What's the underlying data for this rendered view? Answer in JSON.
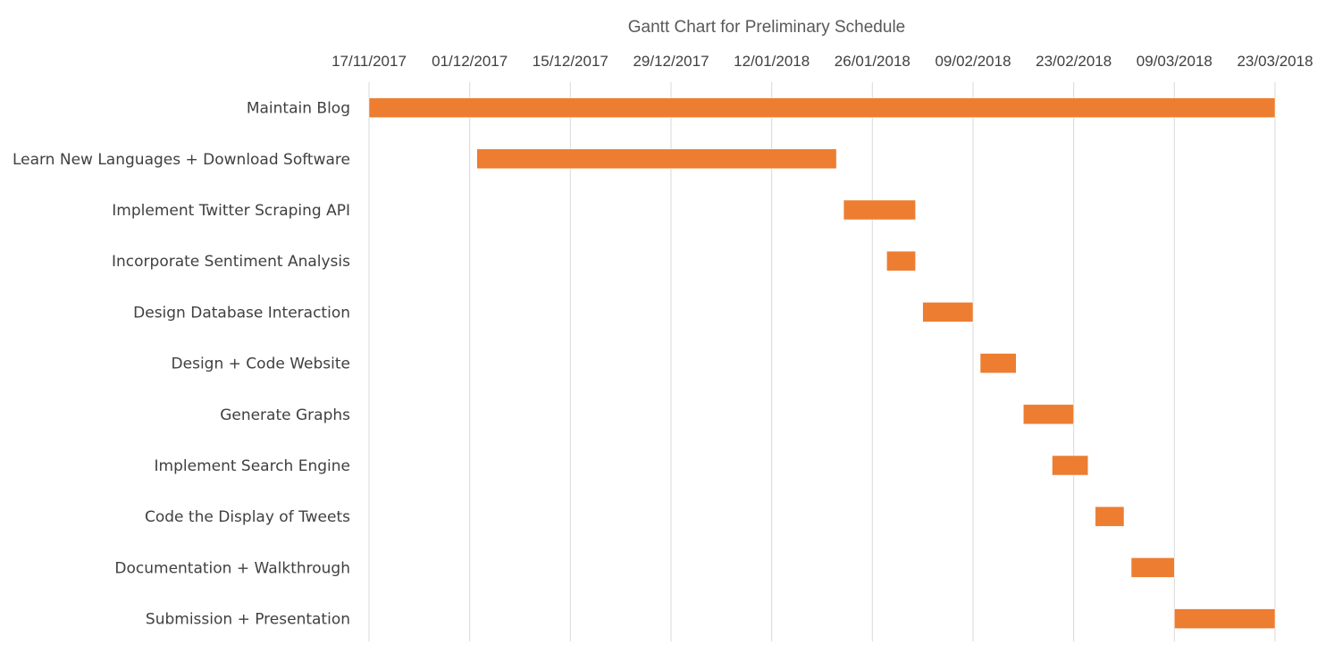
{
  "chart_data": {
    "type": "bar",
    "orientation": "horizontal",
    "subtype": "gantt",
    "title": "Gantt Chart for Preliminary Schedule",
    "x_axis": {
      "position": "top",
      "ticks": [
        "17/11/2017",
        "01/12/2017",
        "15/12/2017",
        "29/12/2017",
        "12/01/2018",
        "26/01/2018",
        "09/02/2018",
        "23/02/2018",
        "09/03/2018",
        "23/03/2018"
      ],
      "range": [
        "17/11/2017",
        "23/03/2018"
      ],
      "grid": true
    },
    "bar_color": "#ED7D31",
    "tasks": [
      {
        "name": "Maintain Blog",
        "start": "17/11/2017",
        "end": "23/03/2018"
      },
      {
        "name": "Learn New Languages + Download Software",
        "start": "02/12/2017",
        "end": "21/01/2018"
      },
      {
        "name": "Implement Twitter Scraping API",
        "start": "22/01/2018",
        "end": "01/02/2018"
      },
      {
        "name": "Incorporate Sentiment Analysis",
        "start": "28/01/2018",
        "end": "01/02/2018"
      },
      {
        "name": "Design Database Interaction",
        "start": "02/02/2018",
        "end": "09/02/2018"
      },
      {
        "name": "Design + Code Website",
        "start": "10/02/2018",
        "end": "15/02/2018"
      },
      {
        "name": "Generate Graphs",
        "start": "16/02/2018",
        "end": "23/02/2018"
      },
      {
        "name": "Implement Search Engine",
        "start": "20/02/2018",
        "end": "25/02/2018"
      },
      {
        "name": "Code the Display of Tweets",
        "start": "26/02/2018",
        "end": "02/03/2018"
      },
      {
        "name": "Documentation + Walkthrough",
        "start": "03/03/2018",
        "end": "09/03/2018"
      },
      {
        "name": "Submission + Presentation",
        "start": "09/03/2018",
        "end": "23/03/2018"
      }
    ]
  }
}
